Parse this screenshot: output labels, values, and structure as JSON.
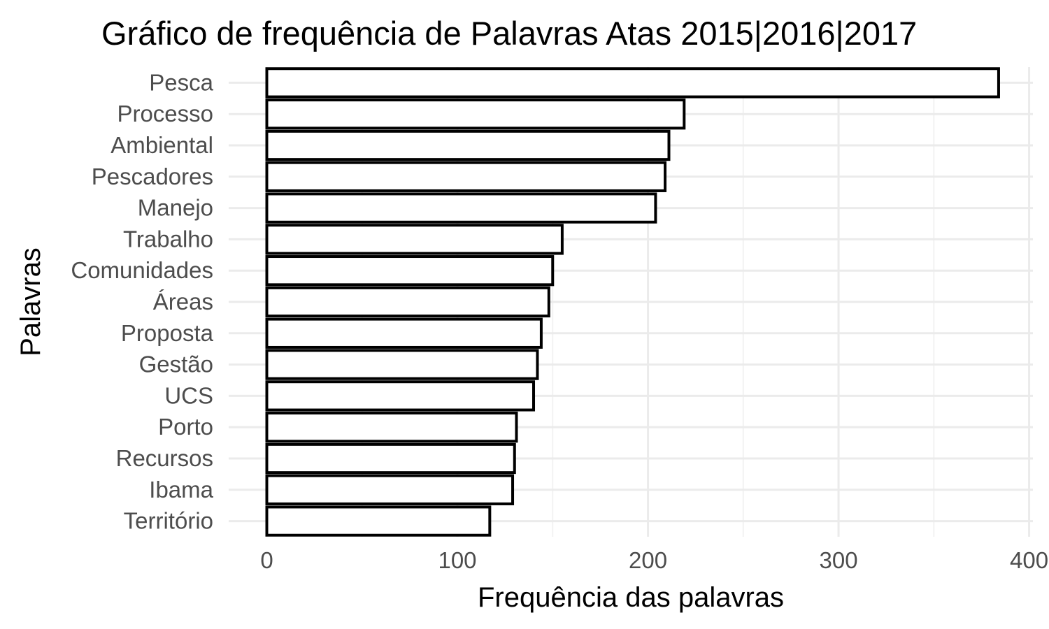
{
  "chart_data": {
    "type": "bar",
    "orientation": "horizontal",
    "title": "Gráfico de frequência de Palavras Atas 2015|2016|2017",
    "xlabel": "Frequência das palavras",
    "ylabel": "Palavras",
    "categories": [
      "Pesca",
      "Processo",
      "Ambiental",
      "Pescadores",
      "Manejo",
      "Trabalho",
      "Comunidades",
      "Áreas",
      "Proposta",
      "Gestão",
      "UCS",
      "Porto",
      "Recursos",
      "Ibama",
      "Território"
    ],
    "values": [
      384,
      219,
      211,
      209,
      204,
      155,
      150,
      148,
      144,
      142,
      140,
      131,
      130,
      129,
      117
    ],
    "xlim": [
      -20,
      402
    ],
    "xticks": [
      0,
      100,
      200,
      300,
      400
    ],
    "grid": true,
    "bar_fill": "#ffffff",
    "bar_stroke": "#000000",
    "grid_color": "#ebebeb",
    "tick_label_color": "#4d4d4d"
  }
}
